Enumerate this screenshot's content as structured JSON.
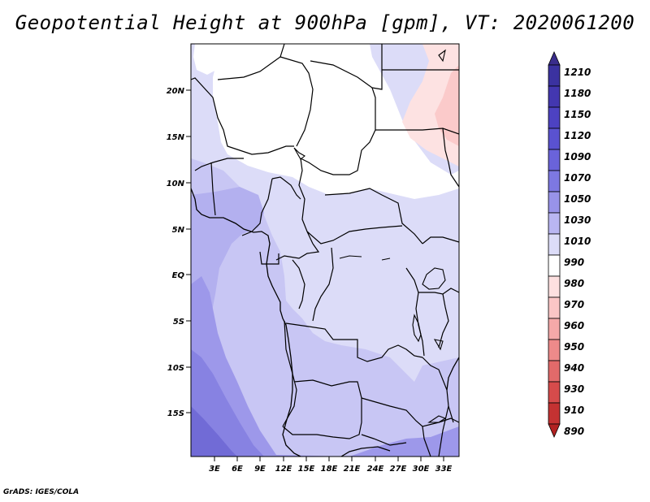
{
  "title": "Geopotential Height at 900hPa [gpm], VT: 2020061200",
  "credit": "GrADS: IGES/COLA",
  "map": {
    "lat_ticks": [
      "20N",
      "15N",
      "10N",
      "5N",
      "EQ",
      "5S",
      "10S",
      "15S"
    ],
    "lon_ticks": [
      "3E",
      "6E",
      "9E",
      "12E",
      "15E",
      "18E",
      "21E",
      "24E",
      "27E",
      "30E",
      "33E"
    ],
    "extent": {
      "lon": [
        0,
        35
      ],
      "lat": [
        -20,
        24.5
      ]
    }
  },
  "colorbar": {
    "levels": [
      "1210",
      "1180",
      "1150",
      "1120",
      "1090",
      "1070",
      "1050",
      "1030",
      "1010",
      "990",
      "980",
      "970",
      "960",
      "950",
      "940",
      "930",
      "910",
      "890"
    ],
    "colors": [
      "#3a2d8c",
      "#3b32a0",
      "#4337b0",
      "#4d42c2",
      "#5a52d0",
      "#6a63da",
      "#7d78e2",
      "#9893e9",
      "#b9b6f2",
      "#dcdcf8",
      "#ffffff",
      "#fde0e0",
      "#fbc6c6",
      "#f5a9a9",
      "#ee8a8a",
      "#e26a6a",
      "#d64b4b",
      "#c43232",
      "#b22222"
    ]
  },
  "fill_colors": {
    "white": "#ffffff",
    "z1010": "#dcdcf8",
    "z1030": "#c8c6f4",
    "z1050": "#b3b0ef",
    "z1070": "#9d98ea",
    "z1090": "#8782e2",
    "z1120": "#716bd6",
    "pink1": "#fde2e2",
    "pink2": "#fbcaca"
  }
}
